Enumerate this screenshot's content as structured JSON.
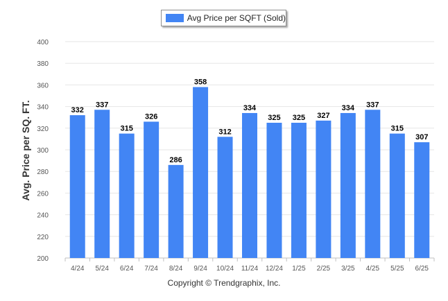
{
  "legend": {
    "label": "Avg Price per SQFT (Sold)"
  },
  "footer": {
    "copyright": "Copyright © Trendgraphix, Inc."
  },
  "chart_data": {
    "type": "bar",
    "title": "",
    "xlabel": "",
    "ylabel": "Avg. Price per SQ. FT.",
    "ylim": [
      200,
      400
    ],
    "yticks": [
      200,
      220,
      240,
      260,
      280,
      300,
      320,
      340,
      360,
      380,
      400
    ],
    "grid": true,
    "legend_position": "top-center",
    "bar_color": "#4285f4",
    "categories": [
      "4/24",
      "5/24",
      "6/24",
      "7/24",
      "8/24",
      "9/24",
      "10/24",
      "11/24",
      "12/24",
      "1/25",
      "2/25",
      "3/25",
      "4/25",
      "5/25",
      "6/25"
    ],
    "series": [
      {
        "name": "Avg Price per SQFT (Sold)",
        "values": [
          332,
          337,
          315,
          326,
          286,
          358,
          312,
          334,
          325,
          325,
          327,
          334,
          337,
          315,
          307
        ]
      }
    ]
  }
}
